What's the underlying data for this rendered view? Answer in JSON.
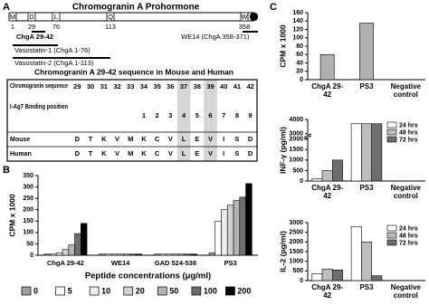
{
  "panel_labels": [
    "A",
    "B",
    "C"
  ],
  "panel_a": {
    "title": "Chromogranin A Prohormone",
    "markers": [
      {
        "letter": "M",
        "position": "1"
      },
      {
        "letter": "D",
        "position": "29"
      },
      {
        "letter": "L",
        "position": "76"
      },
      {
        "letter": "Q",
        "position": "113"
      },
      {
        "letter": "W",
        "position": "358"
      }
    ],
    "fragments": [
      "ChgA 29-42",
      "WE14 (ChgA 358-371)",
      "Vasostatin-1 (ChgA 1-76)",
      "Vasostatin-2 (ChgA 1-113)"
    ],
    "sequence_title": "Chromogranin A 29-42 sequence in Mouse and Human",
    "table": {
      "highlight_columns": [
        8,
        10
      ],
      "rows": [
        {
          "label": "Chromogranin sequence",
          "cells": [
            "29",
            "30",
            "31",
            "32",
            "33",
            "34",
            "35",
            "36",
            "37",
            "38",
            "39",
            "40",
            "41",
            "42"
          ]
        },
        {
          "label": "I-Ag7 Binding position",
          "cells": [
            null,
            null,
            null,
            null,
            null,
            "1",
            "2",
            "3",
            "4",
            "5",
            "6",
            "7",
            "8",
            "9"
          ]
        },
        {
          "label": "Mouse",
          "cells": [
            "D",
            "T",
            "K",
            "V",
            "M",
            "K",
            "C",
            "V",
            "L",
            "E",
            "V",
            "I",
            "S",
            "D"
          ]
        },
        {
          "label": "Human",
          "cells": [
            "D",
            "T",
            "K",
            "V",
            "M",
            "K",
            "C",
            "V",
            "L",
            "E",
            "V",
            "I",
            "S",
            "D"
          ]
        }
      ]
    }
  },
  "chart_data": [
    {
      "type": "bar",
      "ylabel": "CPM x 1000",
      "xlabel": "Peptide concentrations (μg/ml)",
      "categories": [
        "ChgA 29-42",
        "WE14",
        "GAD 524-538",
        "PS3"
      ],
      "ylim": [
        0,
        350
      ],
      "yticks": [
        0,
        50,
        100,
        150,
        200,
        250,
        300,
        350
      ],
      "legend": "bottom",
      "series": [
        {
          "name": "0",
          "color": "#9e9e9e",
          "values": [
            5,
            5,
            5,
            10
          ]
        },
        {
          "name": "5",
          "color": "#ffffff",
          "values": [
            5,
            5,
            5,
            150
          ]
        },
        {
          "name": "10",
          "color": "#ececec",
          "values": [
            10,
            5,
            5,
            200
          ]
        },
        {
          "name": "20",
          "color": "#d0d0d0",
          "values": [
            25,
            5,
            5,
            220
          ]
        },
        {
          "name": "50",
          "color": "#b4b4b4",
          "values": [
            45,
            5,
            5,
            240
          ]
        },
        {
          "name": "100",
          "color": "#6e6e6e",
          "values": [
            95,
            5,
            5,
            255
          ]
        },
        {
          "name": "200",
          "color": "#000000",
          "values": [
            140,
            5,
            5,
            315
          ]
        }
      ]
    },
    {
      "type": "bar",
      "ylabel": "CPM x 1000",
      "categories": [
        "ChgA 29-42",
        "PS3",
        "Negative control"
      ],
      "ylim": [
        0,
        160
      ],
      "yticks": [
        0,
        20,
        40,
        60,
        80,
        100,
        120,
        140,
        160
      ],
      "color": "#b0b0b0",
      "values": [
        60,
        135,
        0
      ]
    },
    {
      "type": "bar",
      "ylabel": "INF-γ (pg/ml)",
      "categories": [
        "ChgA 29-42",
        "PS3",
        "Negative control"
      ],
      "ylim": [
        0,
        4000
      ],
      "axis_break": [
        2000,
        3000
      ],
      "yticks": [
        0,
        500,
        1000,
        1500,
        2000,
        3000,
        4000
      ],
      "legend": "upper right",
      "series": [
        {
          "name": "24 hrs",
          "color": "#ffffff",
          "values": [
            100,
            3700,
            0
          ]
        },
        {
          "name": "48 hrs",
          "color": "#bdbdbd",
          "values": [
            500,
            3700,
            0
          ]
        },
        {
          "name": "72 hrs",
          "color": "#6e6e6e",
          "values": [
            1000,
            3700,
            0
          ]
        }
      ]
    },
    {
      "type": "bar",
      "ylabel": "IL-2 (pg/ml)",
      "categories": [
        "ChgA 29-42",
        "PS3",
        "Negative control"
      ],
      "ylim": [
        0,
        3000
      ],
      "yticks": [
        0,
        500,
        1000,
        1500,
        2000,
        2500,
        3000
      ],
      "legend": "upper right",
      "series": [
        {
          "name": "24 hrs",
          "color": "#ffffff",
          "values": [
            350,
            2800,
            0
          ]
        },
        {
          "name": "48 hrs",
          "color": "#bdbdbd",
          "values": [
            600,
            2000,
            0
          ]
        },
        {
          "name": "72 hrs",
          "color": "#6e6e6e",
          "values": [
            550,
            250,
            0
          ]
        }
      ]
    }
  ]
}
